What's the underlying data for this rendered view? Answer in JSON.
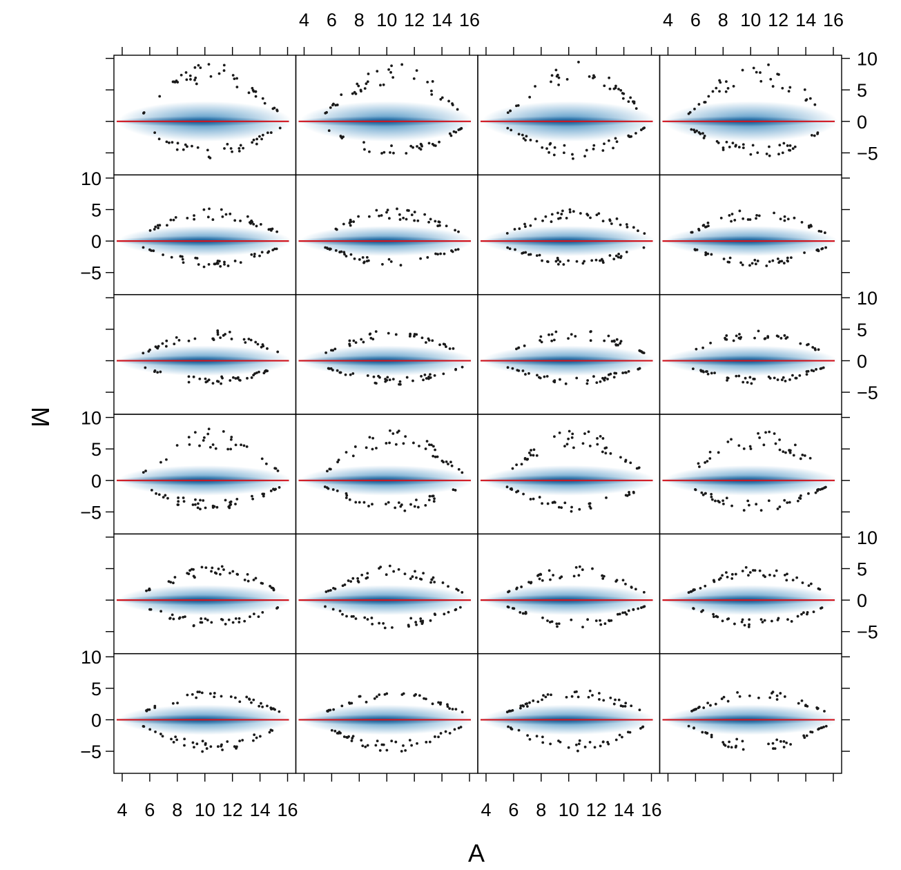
{
  "chart_data": {
    "type": "scatter",
    "layout": {
      "rows": 6,
      "cols": 4
    },
    "xlabel": "A",
    "ylabel": "M",
    "xlim": [
      3.4,
      16.6
    ],
    "ylim": [
      -8.5,
      10.5
    ],
    "x_ticks": [
      4,
      6,
      8,
      10,
      12,
      14,
      16
    ],
    "x_tick_labels": [
      "4",
      "6",
      "8",
      "10",
      "12",
      "14",
      "16"
    ],
    "y_ticks": [
      -5,
      0,
      5,
      10
    ],
    "y_tick_labels": [
      "−5",
      "0",
      "5",
      "10"
    ],
    "smoothed_density": true,
    "fit_line": {
      "type": "loess",
      "color": "#d0141e",
      "approx_value": 0
    },
    "colors": {
      "density": "#1f77b4",
      "points": "#1a1a1a",
      "fit": "#d0141e",
      "frame": "#000000"
    },
    "outlier_envelope": {
      "row_peak_M": [
        9.5,
        5.2,
        5.0,
        8.2,
        5.5,
        4.8
      ],
      "row_trough_M": [
        -6.0,
        -4.2,
        -3.8,
        -5.0,
        -4.5,
        -5.2
      ],
      "A_range": [
        5.5,
        15.5
      ]
    }
  }
}
